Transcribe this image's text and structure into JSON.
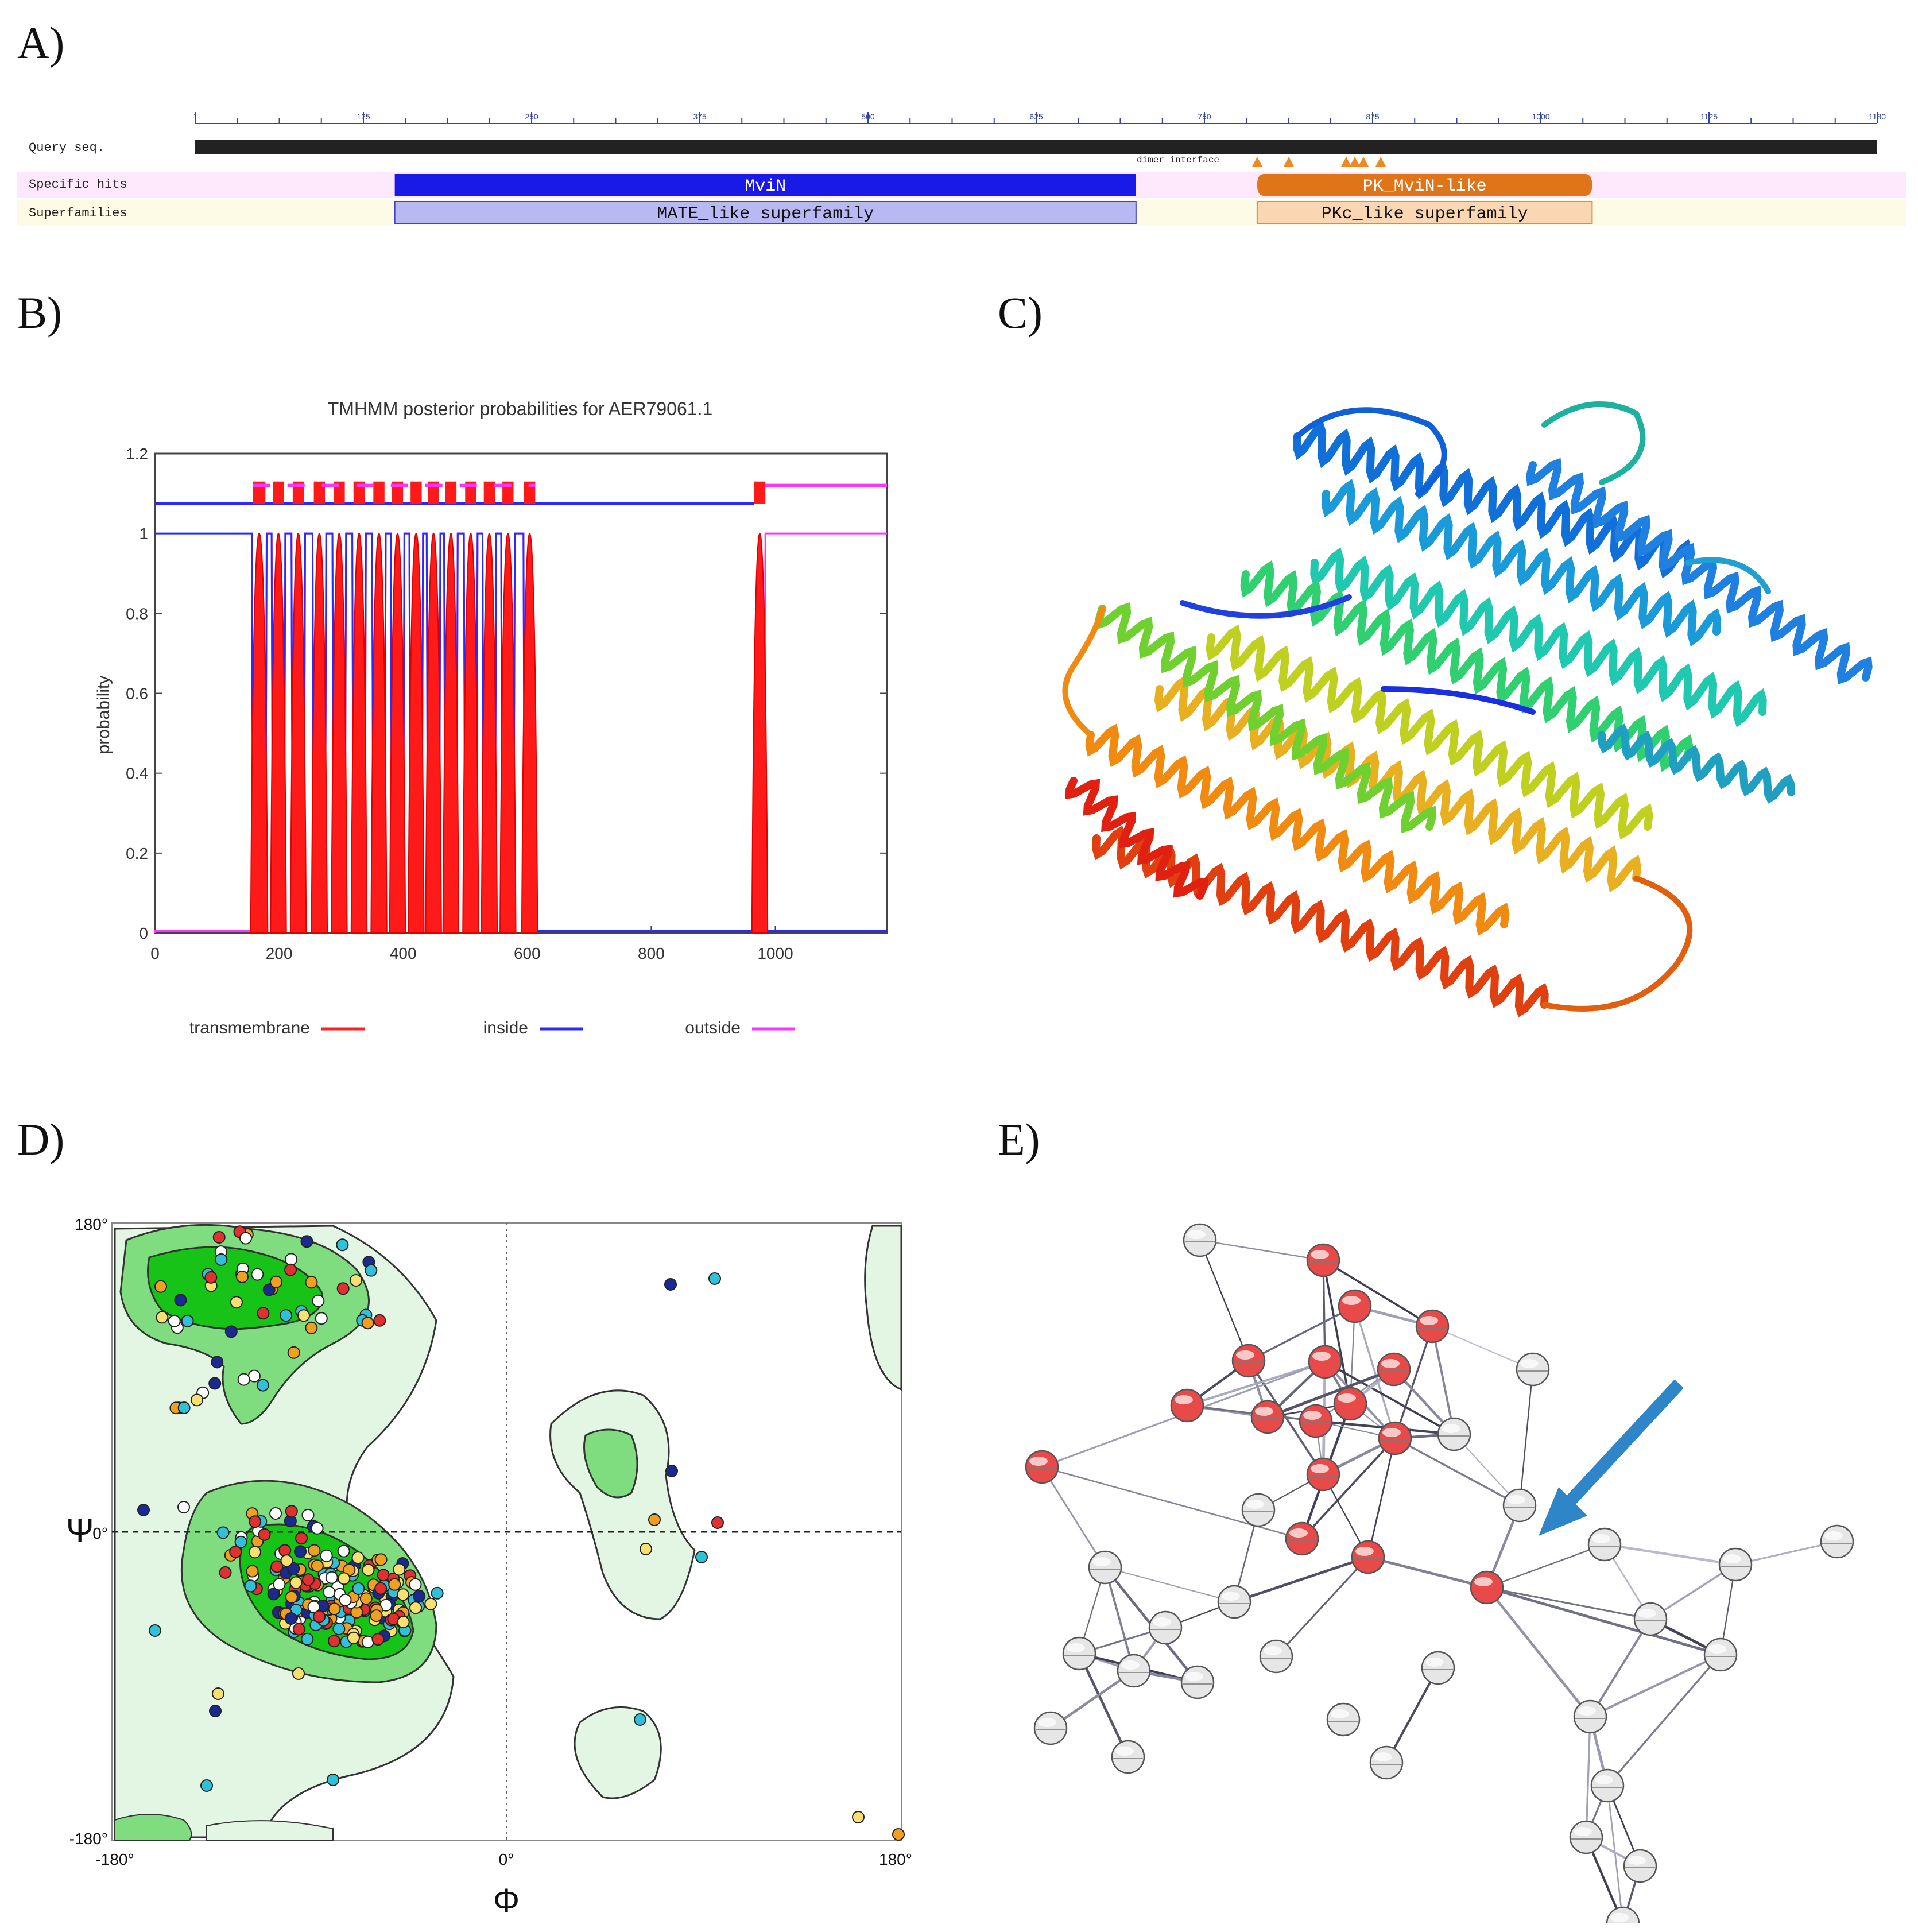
{
  "panels": {
    "a": {
      "label": "A)"
    },
    "b": {
      "label": "B)"
    },
    "c": {
      "label": "C)"
    },
    "d": {
      "label": "D)"
    },
    "e": {
      "label": "E)"
    }
  },
  "domain_map": {
    "row_labels": [
      "Query seq.",
      "Specific hits",
      "Superfamilies"
    ],
    "ruler_ticks": [
      "1",
      "125",
      "250",
      "375",
      "500",
      "625",
      "750",
      "875",
      "1000",
      "1125",
      "1180"
    ],
    "site_label": "dimer interface",
    "specific_hits": [
      {
        "name": "MviN",
        "start": 140,
        "end": 660,
        "color": "#1a1ae6"
      },
      {
        "name": "PK_MviN-like",
        "start": 745,
        "end": 980,
        "color": "#e07418"
      }
    ],
    "superfamilies": [
      {
        "name": "MATE_like superfamily",
        "start": 140,
        "end": 660,
        "color": "#b8b8f2"
      },
      {
        "name": "PKc_like superfamily",
        "start": 745,
        "end": 980,
        "color": "#fbd6b3"
      }
    ],
    "sequence_length": 1180
  },
  "chart_data": {
    "type": "line",
    "title": "TMHMM posterior probabilities for AER79061.1",
    "ylabel": "probability",
    "xlim": [
      0,
      1180
    ],
    "ylim": [
      0,
      1.2
    ],
    "x_ticks": [
      "0",
      "200",
      "400",
      "600",
      "800",
      "1000"
    ],
    "y_ticks": [
      "0",
      "0.2",
      "0.4",
      "0.6",
      "0.8",
      "1",
      "1.2"
    ],
    "tm_segments": [
      [
        158,
        178
      ],
      [
        190,
        208
      ],
      [
        222,
        240
      ],
      [
        256,
        274
      ],
      [
        288,
        306
      ],
      [
        320,
        338
      ],
      [
        352,
        370
      ],
      [
        382,
        400
      ],
      [
        412,
        430
      ],
      [
        440,
        458
      ],
      [
        468,
        486
      ],
      [
        500,
        518
      ],
      [
        530,
        548
      ],
      [
        560,
        578
      ],
      [
        595,
        613
      ],
      [
        966,
        984
      ]
    ],
    "legend": [
      {
        "name": "transmembrane",
        "color": "#ff2020"
      },
      {
        "name": "inside",
        "color": "#2a2aff"
      },
      {
        "name": "outside",
        "color": "#ff33ff"
      }
    ]
  },
  "ramachandran": {
    "x_axis_symbol": "Φ",
    "y_axis_symbol": "Ψ",
    "x_ticks": [
      "-180°",
      "0°",
      "180°"
    ],
    "y_ticks": [
      "180°",
      "0°",
      "-180°"
    ]
  },
  "network": {
    "highlight_color": "#e84a4a",
    "node_color": "#e6e6e6",
    "arrow_color": "#2e86c8"
  }
}
